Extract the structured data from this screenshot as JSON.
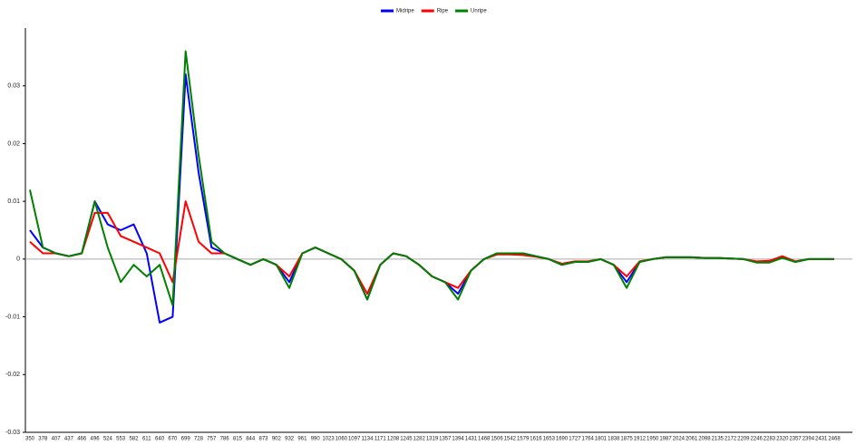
{
  "chart_data": {
    "type": "line",
    "categories": [
      "350",
      "378",
      "407",
      "437",
      "466",
      "496",
      "524",
      "553",
      "582",
      "611",
      "640",
      "670",
      "699",
      "728",
      "757",
      "786",
      "815",
      "844",
      "873",
      "902",
      "932",
      "961",
      "990",
      "1023",
      "1060",
      "1097",
      "1134",
      "1171",
      "1208",
      "1245",
      "1282",
      "1319",
      "1357",
      "1394",
      "1431",
      "1468",
      "1506",
      "1542",
      "1579",
      "1616",
      "1653",
      "1690",
      "1727",
      "1764",
      "1801",
      "1838",
      "1875",
      "1912",
      "1950",
      "1987",
      "2024",
      "2061",
      "2098",
      "2135",
      "2172",
      "2209",
      "2246",
      "2283",
      "2320",
      "2357",
      "2394",
      "2431",
      "2468"
    ],
    "series": [
      {
        "name": "Midripe",
        "color": "#0000ff",
        "values": [
          0.005,
          0.002,
          0.001,
          0.0005,
          0.001,
          0.01,
          0.006,
          0.005,
          0.006,
          0.001,
          -0.011,
          -0.01,
          0.032,
          0.015,
          0.002,
          0.001,
          0,
          -0.001,
          0,
          -0.001,
          -0.004,
          0.001,
          0.002,
          0.001,
          0,
          -0.002,
          -0.007,
          -0.001,
          0.001,
          0.0005,
          -0.001,
          -0.003,
          -0.004,
          -0.006,
          -0.002,
          0,
          0.001,
          0.001,
          0.001,
          0.0005,
          0,
          -0.001,
          -0.0005,
          -0.0005,
          0,
          -0.001,
          -0.004,
          -0.0005,
          0,
          0.0003,
          0.0003,
          0.0003,
          0.0002,
          0.0002,
          0.0001,
          0,
          -0.0005,
          -0.0005,
          0.0003,
          -0.0005,
          0,
          0,
          0
        ]
      },
      {
        "name": "Ripe",
        "color": "#ff0000",
        "values": [
          0.003,
          0.001,
          0.001,
          0.0005,
          0.001,
          0.008,
          0.008,
          0.004,
          0.003,
          0.002,
          0.001,
          -0.004,
          0.01,
          0.003,
          0.001,
          0.001,
          0,
          -0.001,
          0,
          -0.001,
          -0.003,
          0.001,
          0.002,
          0.001,
          0,
          -0.002,
          -0.006,
          -0.001,
          0.001,
          0.0005,
          -0.001,
          -0.003,
          -0.004,
          -0.005,
          -0.002,
          0,
          0.0008,
          0.0008,
          0.0007,
          0.0004,
          0,
          -0.0008,
          -0.0004,
          -0.0004,
          0,
          -0.001,
          -0.003,
          -0.0004,
          0,
          0.0003,
          0.0003,
          0.0003,
          0.0002,
          0.0002,
          0.0001,
          0,
          -0.0004,
          -0.0003,
          0.0005,
          -0.0004,
          0,
          0,
          0
        ]
      },
      {
        "name": "Unripe",
        "color": "#008000",
        "values": [
          0.012,
          0.002,
          0.001,
          0.0005,
          0.001,
          0.01,
          0.002,
          -0.004,
          -0.001,
          -0.003,
          -0.001,
          -0.008,
          0.036,
          0.018,
          0.003,
          0.001,
          0,
          -0.001,
          0,
          -0.001,
          -0.005,
          0.001,
          0.002,
          0.001,
          0,
          -0.002,
          -0.007,
          -0.001,
          0.001,
          0.0005,
          -0.001,
          -0.003,
          -0.004,
          -0.007,
          -0.002,
          0,
          0.001,
          0.001,
          0.001,
          0.0005,
          0,
          -0.001,
          -0.0005,
          -0.0005,
          0,
          -0.001,
          -0.005,
          -0.0005,
          0,
          0.0003,
          0.0003,
          0.0003,
          0.0002,
          0.0002,
          0.0001,
          0,
          -0.0006,
          -0.0006,
          0.0002,
          -0.0005,
          0,
          0,
          0
        ]
      }
    ],
    "ylim": [
      -0.03,
      0.04
    ],
    "yticks": [
      -0.03,
      -0.02,
      -0.01,
      0,
      0.01,
      0.02,
      0.03
    ],
    "legend": "top"
  }
}
